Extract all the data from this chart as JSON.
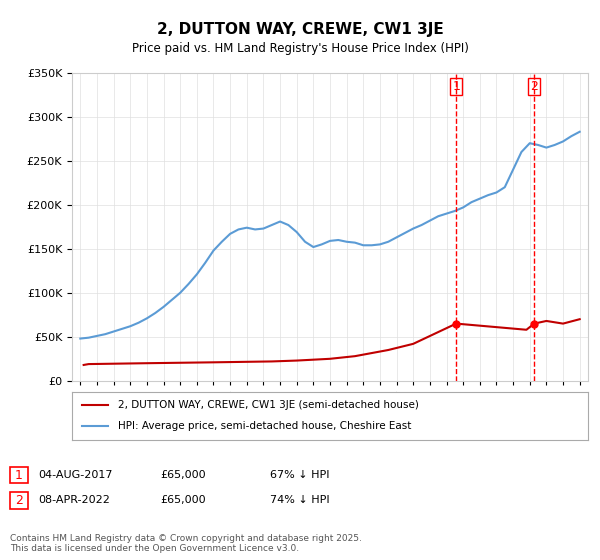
{
  "title": "2, DUTTON WAY, CREWE, CW1 3JE",
  "subtitle": "Price paid vs. HM Land Registry's House Price Index (HPI)",
  "xlabel": "",
  "ylabel": "",
  "ylim": [
    0,
    350000
  ],
  "yticks": [
    0,
    50000,
    100000,
    150000,
    200000,
    250000,
    300000,
    350000
  ],
  "ytick_labels": [
    "£0",
    "£50K",
    "£100K",
    "£150K",
    "£200K",
    "£250K",
    "£300K",
    "£350K"
  ],
  "hpi_color": "#5b9bd5",
  "price_color": "#c00000",
  "vline_color": "#ff0000",
  "marker1_year": 2017.58,
  "marker2_year": 2022.27,
  "marker1_price": 65000,
  "marker2_price": 65000,
  "marker1_label": "04-AUG-2017",
  "marker2_label": "08-APR-2022",
  "marker1_pct": "67% ↓ HPI",
  "marker2_pct": "74% ↓ HPI",
  "legend1": "2, DUTTON WAY, CREWE, CW1 3JE (semi-detached house)",
  "legend2": "HPI: Average price, semi-detached house, Cheshire East",
  "footnote": "Contains HM Land Registry data © Crown copyright and database right 2025.\nThis data is licensed under the Open Government Licence v3.0.",
  "hpi_years": [
    1995,
    1995.5,
    1996,
    1996.5,
    1997,
    1997.5,
    1998,
    1998.5,
    1999,
    1999.5,
    2000,
    2000.5,
    2001,
    2001.5,
    2002,
    2002.5,
    2003,
    2003.5,
    2004,
    2004.5,
    2005,
    2005.5,
    2006,
    2006.5,
    2007,
    2007.5,
    2008,
    2008.5,
    2009,
    2009.5,
    2010,
    2010.5,
    2011,
    2011.5,
    2012,
    2012.5,
    2013,
    2013.5,
    2014,
    2014.5,
    2015,
    2015.5,
    2016,
    2016.5,
    2017,
    2017.5,
    2018,
    2018.5,
    2019,
    2019.5,
    2020,
    2020.5,
    2021,
    2021.5,
    2022,
    2022.5,
    2023,
    2023.5,
    2024,
    2024.5,
    2025
  ],
  "hpi_values": [
    48000,
    49000,
    51000,
    53000,
    56000,
    59000,
    62000,
    66000,
    71000,
    77000,
    84000,
    92000,
    100000,
    110000,
    121000,
    134000,
    148000,
    158000,
    167000,
    172000,
    174000,
    172000,
    173000,
    177000,
    181000,
    177000,
    169000,
    158000,
    152000,
    155000,
    159000,
    160000,
    158000,
    157000,
    154000,
    154000,
    155000,
    158000,
    163000,
    168000,
    173000,
    177000,
    182000,
    187000,
    190000,
    193000,
    197000,
    203000,
    207000,
    211000,
    214000,
    220000,
    240000,
    260000,
    270000,
    268000,
    265000,
    268000,
    272000,
    278000,
    283000
  ],
  "price_years": [
    1995.2,
    1995.5,
    1999.0,
    2003.0,
    2006.5,
    2008.0,
    2010.0,
    2011.5,
    2013.5,
    2015.0,
    2017.58,
    2021.8,
    2022.27,
    2023.0,
    2024.0,
    2025.0
  ],
  "price_values": [
    18000,
    19000,
    20000,
    21000,
    22000,
    23000,
    25000,
    28000,
    35000,
    42000,
    65000,
    58000,
    65000,
    68000,
    65000,
    70000
  ],
  "background_color": "#ffffff",
  "grid_color": "#e0e0e0"
}
